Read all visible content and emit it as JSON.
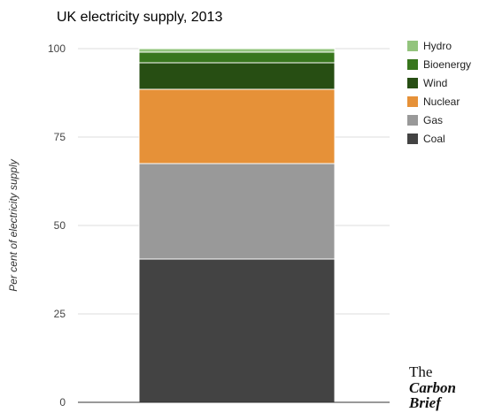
{
  "chart_data": {
    "type": "bar",
    "stacked": true,
    "title": "UK electricity supply, 2013",
    "ylabel": "Per cent of electricity supply",
    "xlabel": "",
    "ylim": [
      0,
      100
    ],
    "yticks": [
      0,
      25,
      50,
      75,
      100
    ],
    "grid": true,
    "legend_position": "right",
    "series": [
      {
        "name": "Coal",
        "value": 40.5,
        "color": "#434343"
      },
      {
        "name": "Gas",
        "value": 27,
        "color": "#999999"
      },
      {
        "name": "Nuclear",
        "value": 21,
        "color": "#e69138"
      },
      {
        "name": "Wind",
        "value": 7.5,
        "color": "#274e13"
      },
      {
        "name": "Bioenergy",
        "value": 3,
        "color": "#38761d"
      },
      {
        "name": "Hydro",
        "value": 1,
        "color": "#93c47d"
      }
    ]
  },
  "logo": {
    "line1": "The",
    "line2": "Carbon",
    "line3": "Brief"
  }
}
